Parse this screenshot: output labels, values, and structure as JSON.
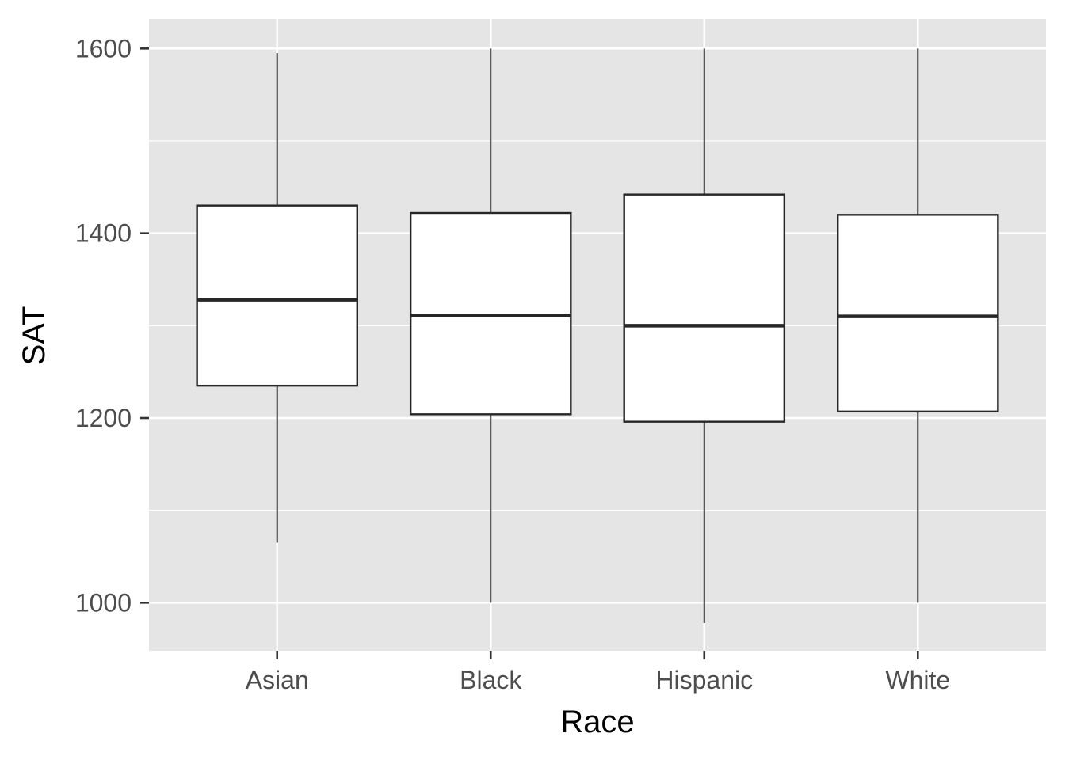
{
  "chart_data": {
    "type": "box",
    "xlabel": "Race",
    "ylabel": "SAT",
    "ylim": [
      948,
      1632
    ],
    "y_ticks": [
      1000,
      1200,
      1400,
      1600
    ],
    "y_tick_labels": [
      "1000",
      "1200",
      "1400",
      "1600"
    ],
    "y_minor_ticks": [
      1100,
      1300,
      1500
    ],
    "grid": true,
    "categories": [
      "Asian",
      "Black",
      "Hispanic",
      "White"
    ],
    "boxes": [
      {
        "category": "Asian",
        "whisker_low": 1065,
        "q1": 1235,
        "median": 1328,
        "q3": 1430,
        "whisker_high": 1595
      },
      {
        "category": "Black",
        "whisker_low": 1000,
        "q1": 1204,
        "median": 1311,
        "q3": 1422,
        "whisker_high": 1600
      },
      {
        "category": "Hispanic",
        "whisker_low": 978,
        "q1": 1196,
        "median": 1300,
        "q3": 1442,
        "whisker_high": 1600
      },
      {
        "category": "White",
        "whisker_low": 1000,
        "q1": 1207,
        "median": 1310,
        "q3": 1420,
        "whisker_high": 1600
      }
    ],
    "colors": {
      "panel": "#e5e5e5",
      "grid": "#ffffff",
      "box_fill": "#ffffff",
      "box_stroke": "#262626",
      "tick": "#333333"
    }
  }
}
